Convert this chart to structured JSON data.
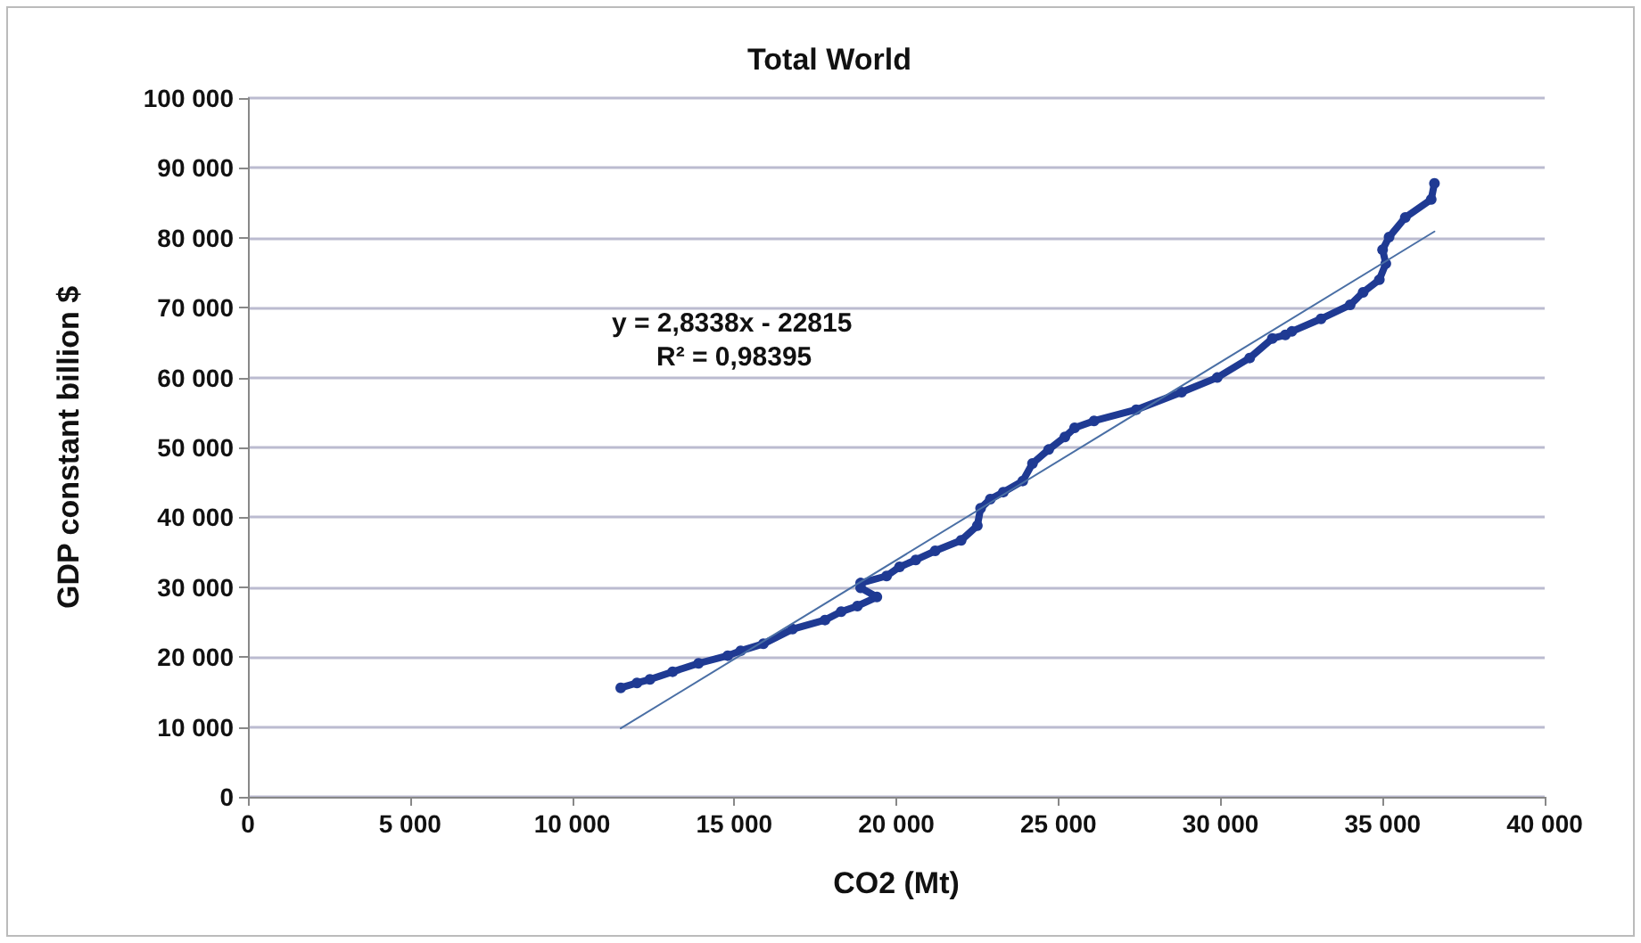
{
  "chart_data": {
    "type": "line",
    "title": "Total World",
    "xlabel": "CO2 (Mt)",
    "ylabel": "GDP constant billion $",
    "xlim": [
      0,
      40000
    ],
    "xticks": [
      {
        "value": 0,
        "label": "0"
      },
      {
        "value": 5000,
        "label": "5 000"
      },
      {
        "value": 10000,
        "label": "10 000"
      },
      {
        "value": 15000,
        "label": "15 000"
      },
      {
        "value": 20000,
        "label": "20 000"
      },
      {
        "value": 25000,
        "label": "25 000"
      },
      {
        "value": 30000,
        "label": "30 000"
      },
      {
        "value": 35000,
        "label": "35 000"
      },
      {
        "value": 40000,
        "label": "40 000"
      }
    ],
    "ylim": [
      0,
      100000
    ],
    "yticks": [
      {
        "value": 0,
        "label": "0"
      },
      {
        "value": 10000,
        "label": "10 000"
      },
      {
        "value": 20000,
        "label": "20 000"
      },
      {
        "value": 30000,
        "label": "30 000"
      },
      {
        "value": 40000,
        "label": "40 000"
      },
      {
        "value": 50000,
        "label": "50 000"
      },
      {
        "value": 60000,
        "label": "60 000"
      },
      {
        "value": 70000,
        "label": "70 000"
      },
      {
        "value": 80000,
        "label": "80 000"
      },
      {
        "value": 90000,
        "label": "90 000"
      },
      {
        "value": 100000,
        "label": "100 000"
      }
    ],
    "grid": "y",
    "series": [
      {
        "color": "#1f3a93",
        "marker": "circle",
        "x": [
          11500,
          12000,
          12400,
          13100,
          13900,
          14800,
          15200,
          15900,
          16800,
          17800,
          18300,
          18800,
          19400,
          18900,
          18900,
          19700,
          20100,
          20600,
          21200,
          22000,
          22500,
          22600,
          22900,
          23300,
          23900,
          24200,
          24700,
          25200,
          25500,
          26100,
          27400,
          28800,
          29900,
          30900,
          31600,
          32000,
          32200,
          33100,
          34000,
          34400,
          34900,
          35100,
          35000,
          35200,
          35700,
          36500,
          36600
        ],
        "values": [
          15600,
          16300,
          16800,
          17900,
          19100,
          20200,
          20900,
          21900,
          24000,
          25300,
          26500,
          27300,
          28600,
          29900,
          30600,
          31600,
          32900,
          33900,
          35200,
          36700,
          38800,
          41300,
          42600,
          43600,
          45200,
          47700,
          49700,
          51500,
          52800,
          53800,
          55400,
          57900,
          60000,
          62800,
          65600,
          66100,
          66600,
          68400,
          70400,
          72200,
          74000,
          76300,
          78300,
          80100,
          82900,
          85500,
          87800
        ]
      },
      {
        "type": "line",
        "color": "#4a6fa5",
        "marker": "none",
        "x": [
          11500,
          36600
        ],
        "values": [
          9800,
          80900
        ]
      }
    ],
    "annotations": [
      "y = 2,8338x - 22815",
      "R² = 0,98395"
    ]
  }
}
